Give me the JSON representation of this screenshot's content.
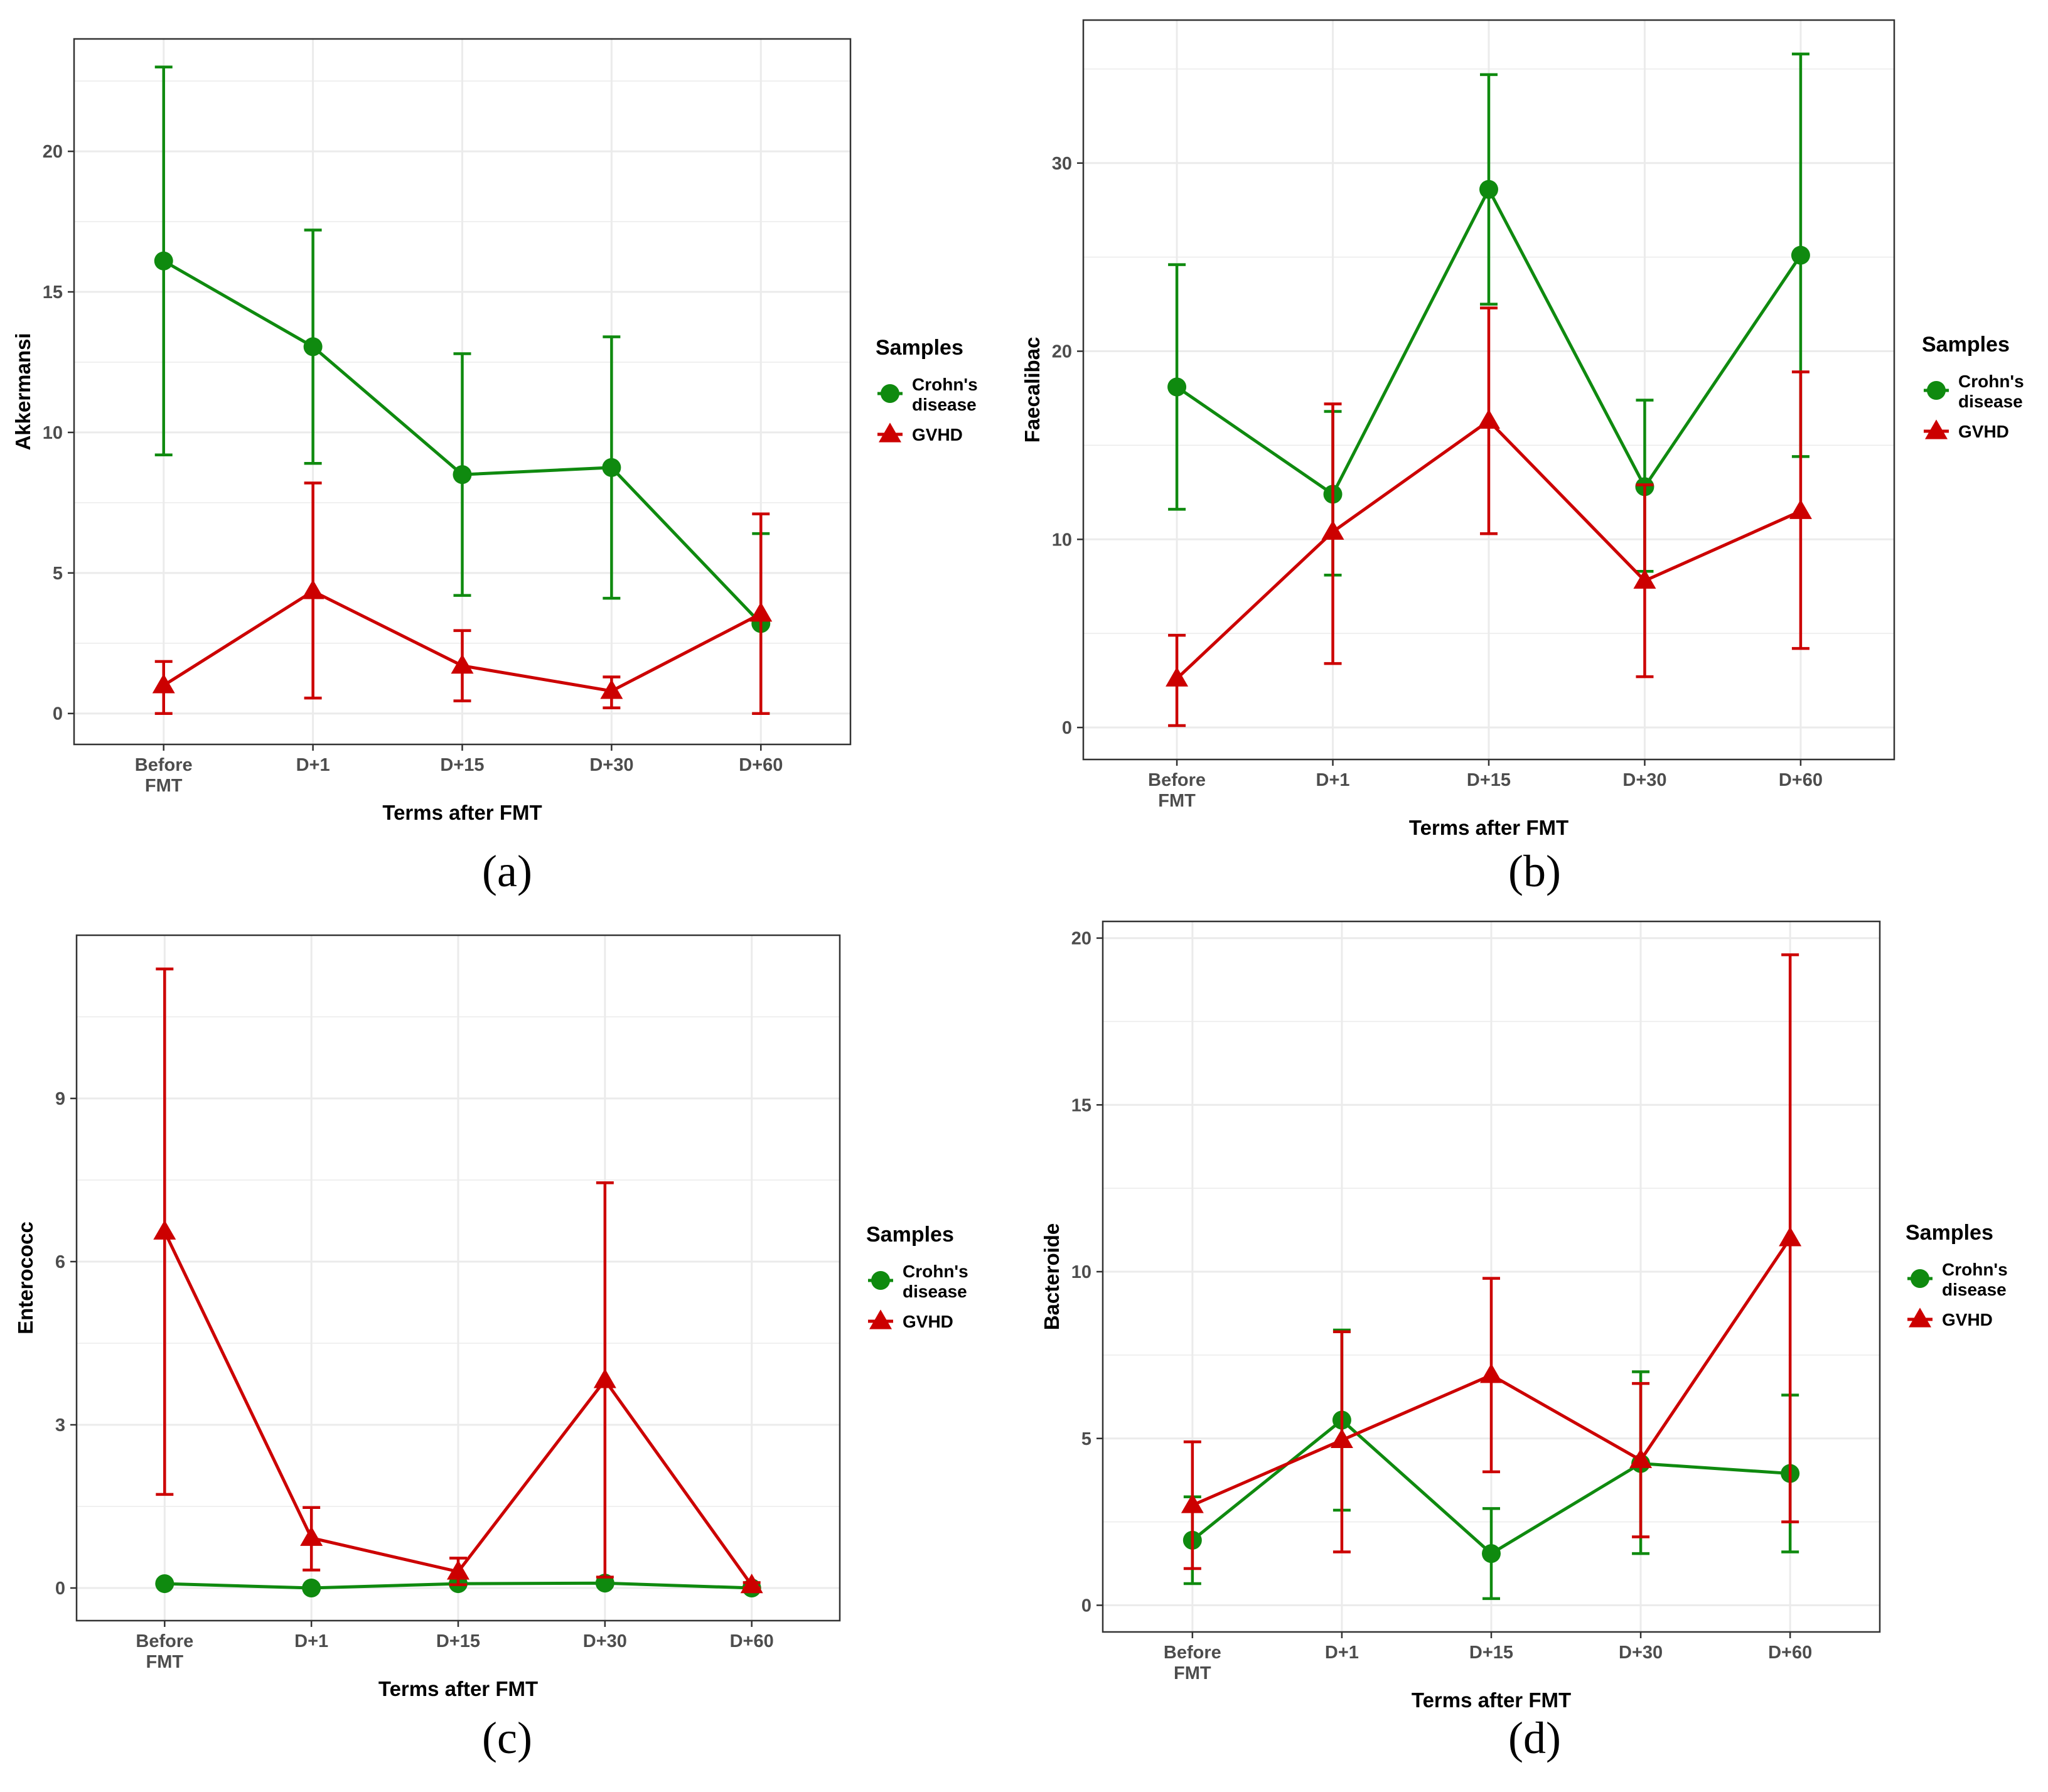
{
  "figure": {
    "colors": {
      "crohn": "#0f8a0f",
      "gvhd": "#cc0000",
      "grid": "#ebebeb",
      "frame": "#333333",
      "text": "#333333"
    }
  },
  "chart_data": [
    {
      "type": "line",
      "panel_label": "(a)",
      "xlabel": "Terms after FMT",
      "ylabel": "Akkermansi",
      "categories": [
        [
          "Before",
          "FMT"
        ],
        [
          "D+1"
        ],
        [
          "D+15"
        ],
        [
          "D+30"
        ],
        [
          "D+60"
        ]
      ],
      "ylim": [
        -1.1,
        24.0
      ],
      "yticks": [
        0,
        5,
        10,
        15,
        20
      ],
      "legend": {
        "title": "Samples",
        "entries": [
          [
            "Crohn's",
            "disease"
          ],
          [
            "GVHD"
          ]
        ],
        "position": "right"
      },
      "series": [
        {
          "name": "Crohn's disease",
          "marker": "circle",
          "values": [
            16.1,
            13.05,
            8.5,
            8.75,
            3.2
          ],
          "lower": [
            9.2,
            8.9,
            4.2,
            4.1,
            0.0
          ],
          "upper": [
            23.0,
            17.2,
            12.8,
            13.4,
            6.4
          ]
        },
        {
          "name": "GVHD",
          "marker": "triangle",
          "values": [
            1.0,
            4.35,
            1.7,
            0.8,
            3.55
          ],
          "lower": [
            0.0,
            0.55,
            0.45,
            0.2,
            0.0
          ],
          "upper": [
            1.85,
            8.2,
            2.95,
            1.3,
            7.1
          ]
        }
      ]
    },
    {
      "type": "line",
      "panel_label": "(b)",
      "xlabel": "Terms after FMT",
      "ylabel": "Faecalibac",
      "categories": [
        [
          "Before",
          "FMT"
        ],
        [
          "D+1"
        ],
        [
          "D+15"
        ],
        [
          "D+30"
        ],
        [
          "D+60"
        ]
      ],
      "ylim": [
        -1.7,
        37.6
      ],
      "yticks": [
        0,
        10,
        20,
        30
      ],
      "legend": {
        "title": "Samples",
        "entries": [
          [
            "Crohn's",
            "disease"
          ],
          [
            "GVHD"
          ]
        ],
        "position": "right"
      },
      "series": [
        {
          "name": "Crohn's disease",
          "marker": "circle",
          "values": [
            18.1,
            12.4,
            28.6,
            12.8,
            25.1
          ],
          "lower": [
            11.6,
            8.1,
            22.5,
            8.3,
            14.4
          ],
          "upper": [
            24.6,
            16.8,
            34.7,
            17.4,
            35.8
          ]
        },
        {
          "name": "GVHD",
          "marker": "triangle",
          "values": [
            2.6,
            10.4,
            16.3,
            7.8,
            11.5
          ],
          "lower": [
            0.1,
            3.4,
            10.3,
            2.7,
            4.2
          ],
          "upper": [
            4.9,
            17.2,
            22.3,
            12.9,
            18.9
          ]
        }
      ]
    },
    {
      "type": "line",
      "panel_label": "(c)",
      "xlabel": "Terms after FMT",
      "ylabel": "Enterococc",
      "categories": [
        [
          "Before",
          "FMT"
        ],
        [
          "D+1"
        ],
        [
          "D+15"
        ],
        [
          "D+30"
        ],
        [
          "D+60"
        ]
      ],
      "ylim": [
        -0.6,
        12.0
      ],
      "yticks": [
        0,
        3,
        6,
        9
      ],
      "legend": {
        "title": "Samples",
        "entries": [
          [
            "Crohn's",
            "disease"
          ],
          [
            "GVHD"
          ]
        ],
        "position": "right"
      },
      "series": [
        {
          "name": "Crohn's disease",
          "marker": "circle",
          "values": [
            0.08,
            0.0,
            0.08,
            0.09,
            0.0
          ]
        },
        {
          "name": "GVHD",
          "marker": "triangle",
          "values": [
            6.55,
            0.92,
            0.3,
            3.82,
            0.05
          ],
          "lower": [
            1.72,
            0.33,
            0.06,
            0.2,
            0.0
          ],
          "upper": [
            11.38,
            1.48,
            0.55,
            7.45,
            0.1
          ]
        }
      ]
    },
    {
      "type": "line",
      "panel_label": "(d)",
      "xlabel": "Terms after FMT",
      "ylabel": "Bacteroide",
      "categories": [
        [
          "Before",
          "FMT"
        ],
        [
          "D+1"
        ],
        [
          "D+15"
        ],
        [
          "D+30"
        ],
        [
          "D+60"
        ]
      ],
      "ylim": [
        -0.8,
        20.5
      ],
      "yticks": [
        0,
        5,
        10,
        15,
        20
      ],
      "legend": {
        "title": "Samples",
        "entries": [
          [
            "Crohn's",
            "disease"
          ],
          [
            "GVHD"
          ]
        ],
        "position": "right"
      },
      "series": [
        {
          "name": "Crohn's disease",
          "marker": "circle",
          "values": [
            1.95,
            5.55,
            1.55,
            4.25,
            3.95
          ],
          "lower": [
            0.65,
            2.85,
            0.2,
            1.55,
            1.6
          ],
          "upper": [
            3.25,
            8.25,
            2.9,
            7.0,
            6.3
          ]
        },
        {
          "name": "GVHD",
          "marker": "triangle",
          "values": [
            3.0,
            4.95,
            6.9,
            4.35,
            11.0
          ],
          "lower": [
            1.1,
            1.6,
            4.0,
            2.05,
            2.5
          ],
          "upper": [
            4.9,
            8.2,
            9.8,
            6.65,
            19.5
          ]
        }
      ]
    }
  ]
}
